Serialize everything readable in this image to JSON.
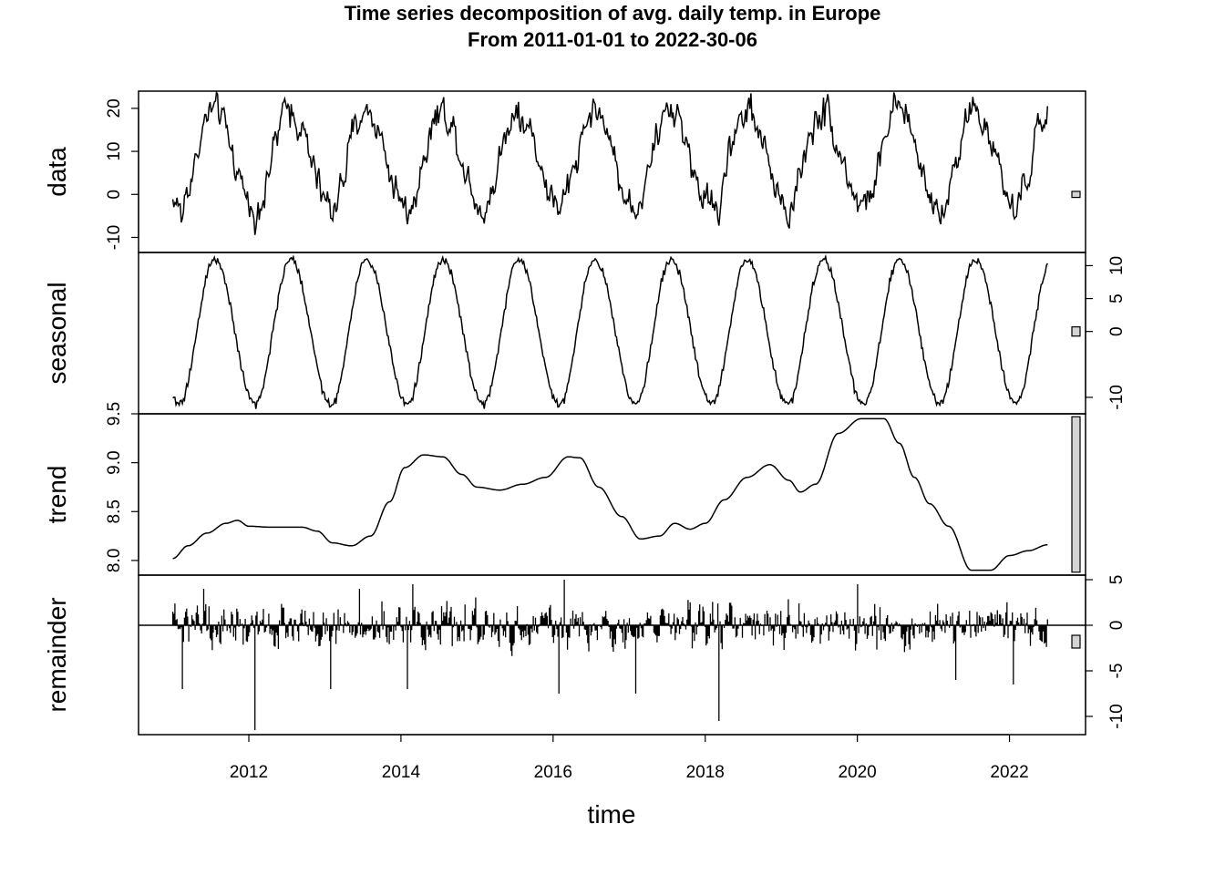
{
  "chart_data": {
    "type": "line",
    "title": "Time series decomposition of avg. daily temp. in Europe",
    "subtitle": "From 2011-01-01 to 2022-30-06",
    "xlabel": "time",
    "xlim": [
      2010.55,
      2023.0
    ],
    "x_ticks": [
      2012,
      2014,
      2016,
      2018,
      2020,
      2022
    ],
    "x_tick_labels": [
      "2012",
      "2014",
      "2016",
      "2018",
      "2020",
      "2022"
    ],
    "x_range": [
      2011.0,
      2022.5
    ],
    "grid": false,
    "panels": [
      {
        "name": "data",
        "label": "data",
        "ylim": [
          -13.5,
          24.0
        ],
        "axis_side": "left",
        "ticks": [
          -10,
          0,
          10,
          20
        ],
        "tick_labels": [
          "-10",
          "0",
          "10",
          "20"
        ],
        "scale_bar": [
          -0.7,
          0.7
        ],
        "mean": 8.6,
        "amplitude": 10.9,
        "peak_phase": 0.53,
        "noise": 2.5,
        "spikes": [
          {
            "x": 2011.12,
            "y": -8
          },
          {
            "x": 2012.08,
            "y": -13
          },
          {
            "x": 2013.08,
            "y": -6
          },
          {
            "x": 2014.08,
            "y": -7
          },
          {
            "x": 2015.08,
            "y": -5
          },
          {
            "x": 2016.1,
            "y": -7
          },
          {
            "x": 2017.08,
            "y": -9
          },
          {
            "x": 2018.18,
            "y": -9
          },
          {
            "x": 2019.08,
            "y": -6
          },
          {
            "x": 2020.2,
            "y": 0
          },
          {
            "x": 2021.08,
            "y": -6
          },
          {
            "x": 2022.08,
            "y": -6
          }
        ],
        "highs": [
          {
            "x": 2011.55,
            "y": 21.5
          },
          {
            "x": 2012.55,
            "y": 21
          },
          {
            "x": 2013.55,
            "y": 21
          },
          {
            "x": 2014.55,
            "y": 21.5
          },
          {
            "x": 2015.55,
            "y": 21.5
          },
          {
            "x": 2016.55,
            "y": 21
          },
          {
            "x": 2017.55,
            "y": 21
          },
          {
            "x": 2018.6,
            "y": 23.5
          },
          {
            "x": 2019.55,
            "y": 22.5
          },
          {
            "x": 2020.55,
            "y": 21.5
          },
          {
            "x": 2021.55,
            "y": 21
          }
        ],
        "last_value": 20.5
      },
      {
        "name": "seasonal",
        "label": "seasonal",
        "ylim": [
          -12.5,
          12.0
        ],
        "axis_side": "right",
        "ticks": [
          -10,
          0,
          5,
          10
        ],
        "tick_labels": [
          "-10",
          "0",
          "5",
          "10"
        ],
        "scale_bar": [
          -0.7,
          0.7
        ],
        "amplitude": 11.0,
        "peak_phase": 0.55,
        "trough_phase": 0.08,
        "noise": 0.5,
        "last_value": 9.5
      },
      {
        "name": "trend",
        "label": "trend",
        "ylim": [
          7.85,
          9.5
        ],
        "axis_side": "left",
        "ticks": [
          8.0,
          8.5,
          9.0,
          9.5
        ],
        "tick_labels": [
          "8.0",
          "8.5",
          "9.0",
          "9.5"
        ],
        "scale_bar": [
          7.88,
          9.47
        ],
        "points": [
          [
            2011.0,
            8.02
          ],
          [
            2011.2,
            8.15
          ],
          [
            2011.45,
            8.28
          ],
          [
            2011.7,
            8.38
          ],
          [
            2011.85,
            8.41
          ],
          [
            2012.0,
            8.35
          ],
          [
            2012.3,
            8.34
          ],
          [
            2012.7,
            8.34
          ],
          [
            2012.9,
            8.3
          ],
          [
            2013.1,
            8.18
          ],
          [
            2013.35,
            8.15
          ],
          [
            2013.6,
            8.25
          ],
          [
            2013.85,
            8.6
          ],
          [
            2014.05,
            8.95
          ],
          [
            2014.3,
            9.08
          ],
          [
            2014.55,
            9.06
          ],
          [
            2014.8,
            8.88
          ],
          [
            2015.0,
            8.75
          ],
          [
            2015.3,
            8.72
          ],
          [
            2015.6,
            8.78
          ],
          [
            2015.9,
            8.85
          ],
          [
            2016.2,
            9.06
          ],
          [
            2016.35,
            9.05
          ],
          [
            2016.6,
            8.75
          ],
          [
            2016.9,
            8.45
          ],
          [
            2017.15,
            8.22
          ],
          [
            2017.4,
            8.25
          ],
          [
            2017.6,
            8.38
          ],
          [
            2017.8,
            8.32
          ],
          [
            2018.0,
            8.38
          ],
          [
            2018.25,
            8.62
          ],
          [
            2018.55,
            8.85
          ],
          [
            2018.85,
            8.98
          ],
          [
            2019.1,
            8.82
          ],
          [
            2019.25,
            8.7
          ],
          [
            2019.45,
            8.78
          ],
          [
            2019.75,
            9.3
          ],
          [
            2020.05,
            9.45
          ],
          [
            2020.35,
            9.45
          ],
          [
            2020.55,
            9.2
          ],
          [
            2020.75,
            8.85
          ],
          [
            2020.95,
            8.58
          ],
          [
            2021.2,
            8.35
          ],
          [
            2021.5,
            7.9
          ],
          [
            2021.75,
            7.9
          ],
          [
            2022.0,
            8.05
          ],
          [
            2022.25,
            8.1
          ],
          [
            2022.5,
            8.16
          ]
        ]
      },
      {
        "name": "remainder",
        "label": "remainder",
        "ylim": [
          -12.0,
          5.5
        ],
        "axis_side": "right",
        "ticks": [
          -10,
          -5,
          0,
          5
        ],
        "tick_labels": [
          "-10",
          "-5",
          "0",
          "5"
        ],
        "scale_bar": [
          -2.5,
          -1.1
        ],
        "zero_line": true,
        "noise": 1.6,
        "spikes": [
          {
            "x": 2011.12,
            "y": -7
          },
          {
            "x": 2012.08,
            "y": -11.5
          },
          {
            "x": 2013.08,
            "y": -7
          },
          {
            "x": 2014.08,
            "y": -7
          },
          {
            "x": 2016.08,
            "y": -7.5
          },
          {
            "x": 2017.08,
            "y": -7.5
          },
          {
            "x": 2018.18,
            "y": -10.5
          },
          {
            "x": 2021.3,
            "y": -6
          },
          {
            "x": 2022.05,
            "y": -6.5
          },
          {
            "x": 2014.15,
            "y": 4.5
          },
          {
            "x": 2016.15,
            "y": 5
          },
          {
            "x": 2020.0,
            "y": 4.5
          },
          {
            "x": 2013.45,
            "y": 4
          },
          {
            "x": 2011.4,
            "y": 4
          }
        ]
      }
    ]
  }
}
